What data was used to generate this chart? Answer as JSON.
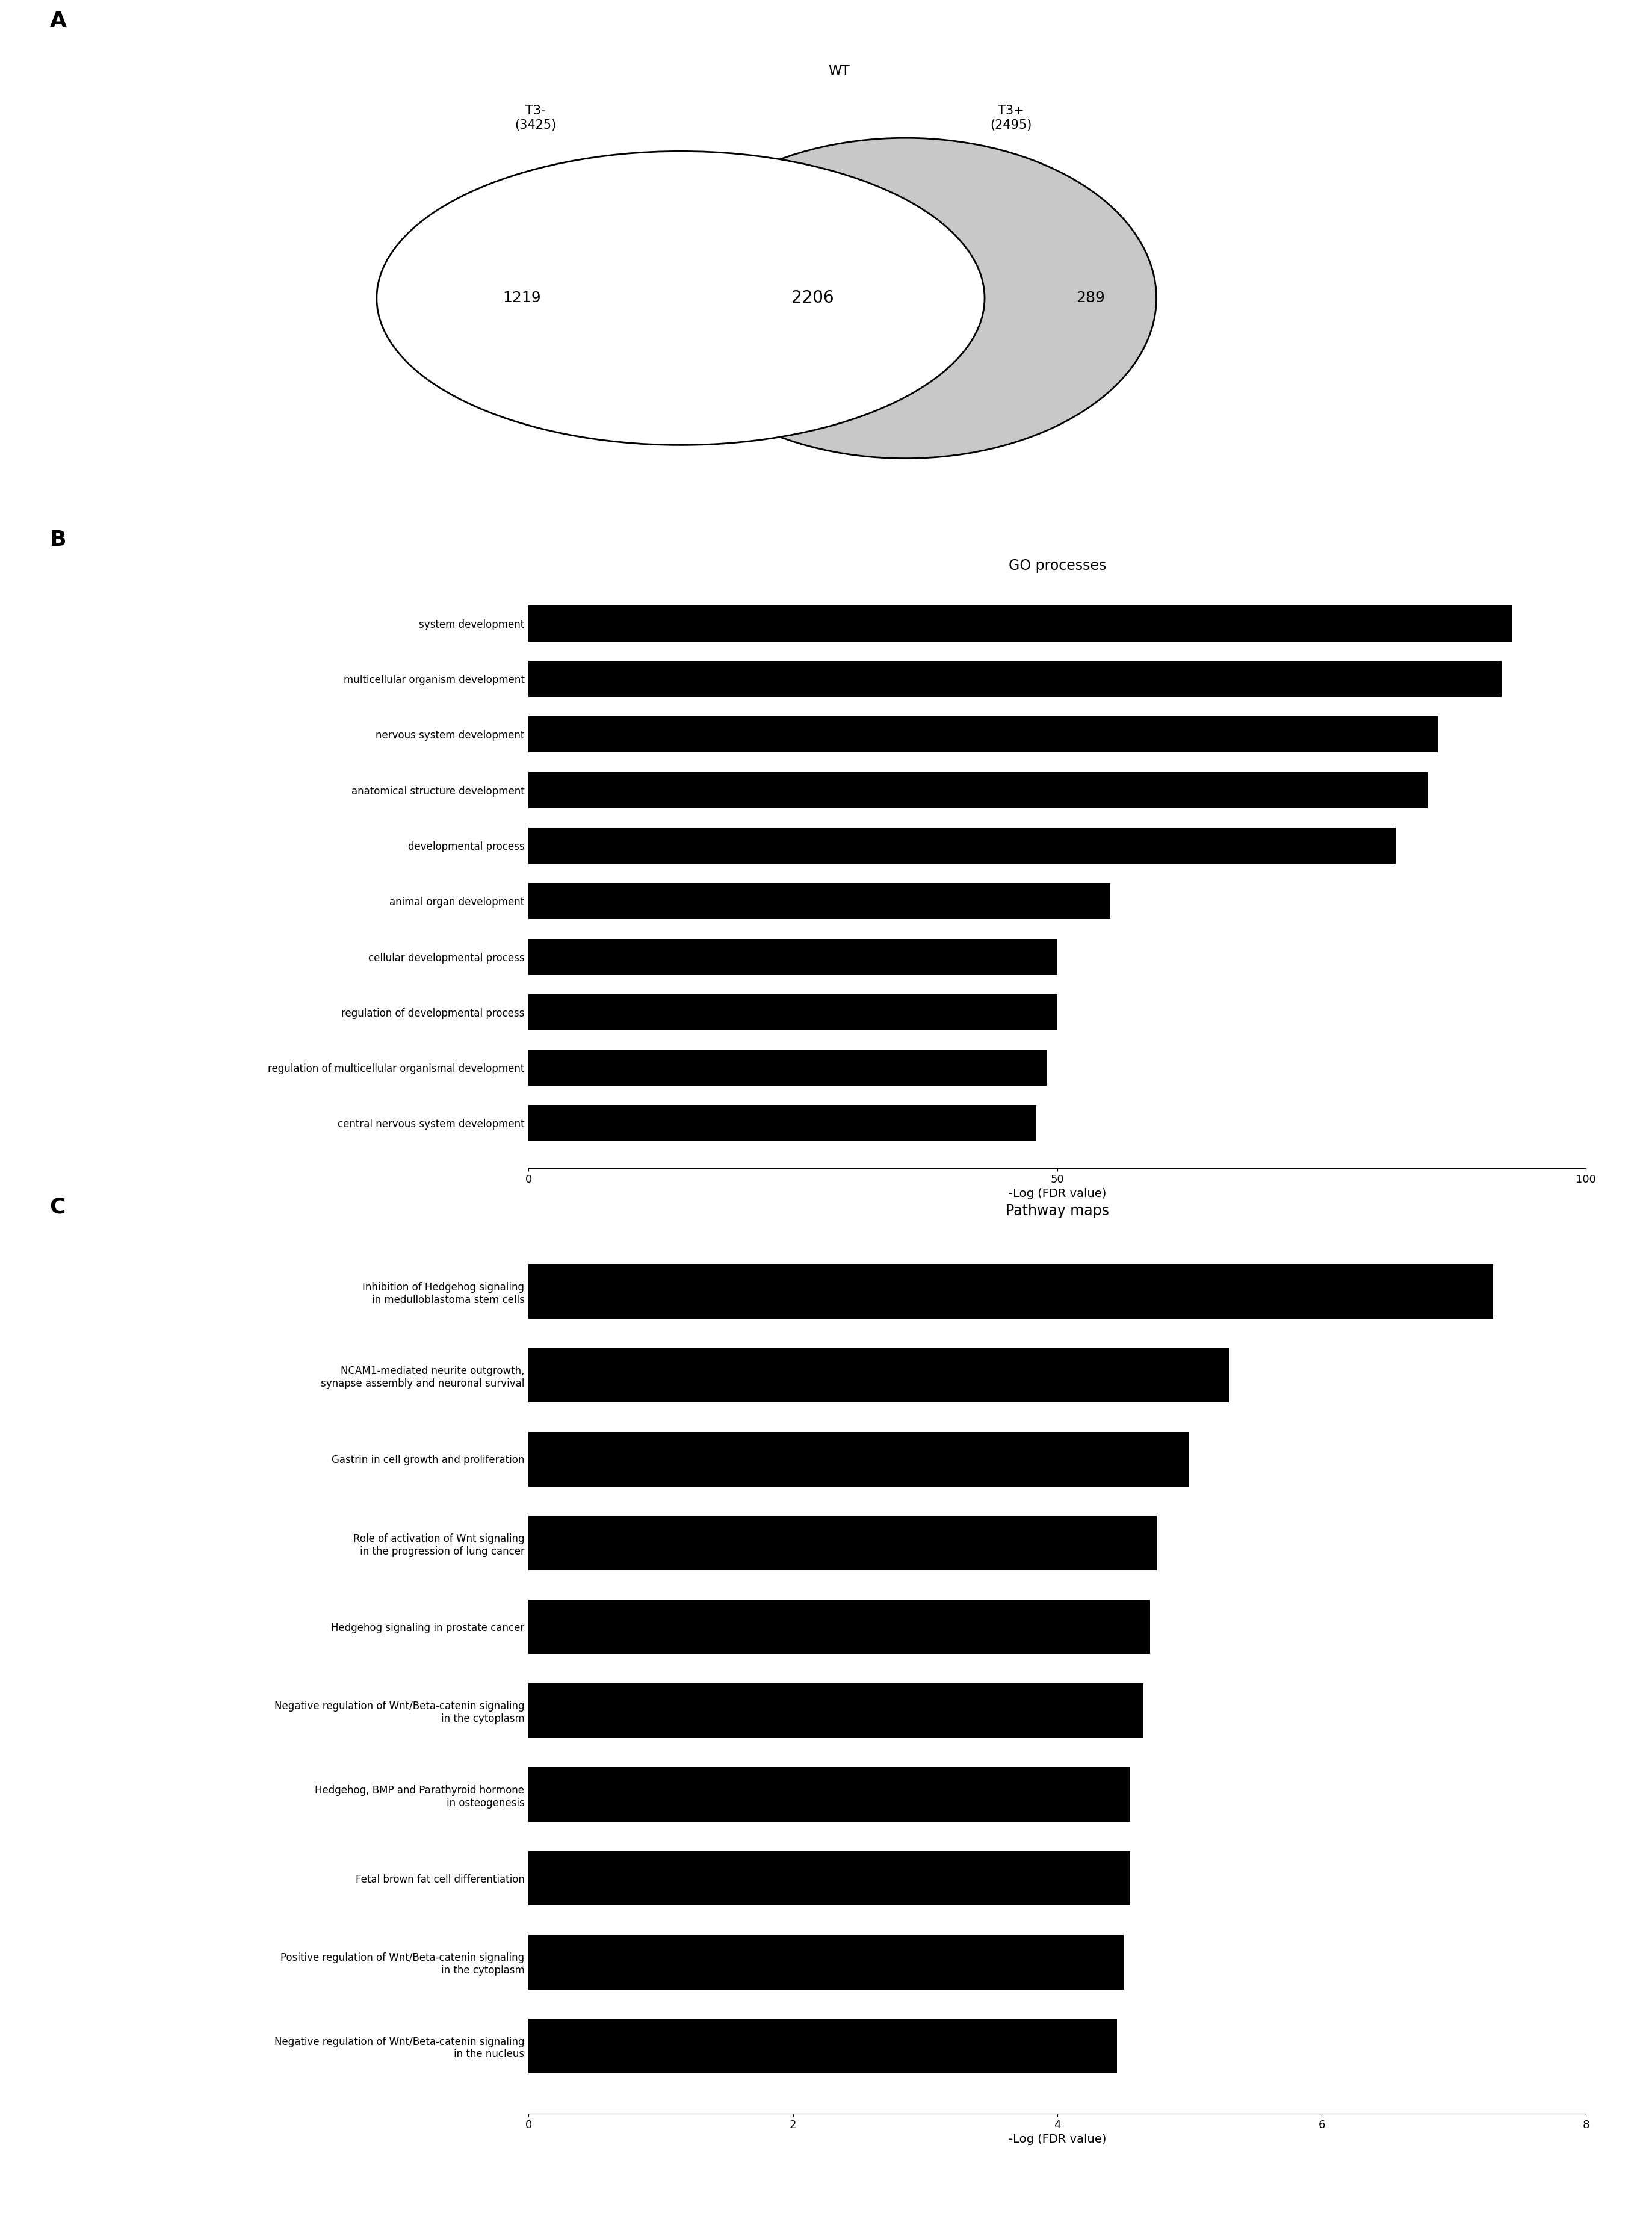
{
  "venn": {
    "label_wt": "WT",
    "label_t3minus": "T3-\n(3425)",
    "label_t3plus": "T3+\n(2495)",
    "val_left": "1219",
    "val_overlap": "2206",
    "val_right": "289"
  },
  "go_title": "GO processes",
  "go_categories": [
    "system development",
    "multicellular organism development",
    "nervous system development",
    "anatomical structure development",
    "developmental process",
    "animal organ development",
    "cellular developmental process",
    "regulation of developmental process",
    "regulation of multicellular organismal development",
    "central nervous system development"
  ],
  "go_values": [
    93,
    92,
    86,
    85,
    82,
    55,
    50,
    50,
    49,
    48
  ],
  "go_xlim": [
    0,
    100
  ],
  "go_xticks": [
    0,
    50,
    100
  ],
  "go_xlabel": "-Log (FDR value)",
  "pathway_title": "Pathway maps",
  "pathway_categories": [
    "Inhibition of Hedgehog signaling\nin medulloblastoma stem cells",
    "NCAM1-mediated neurite outgrowth,\nsynapse assembly and neuronal survival",
    "Gastrin in cell growth and proliferation",
    "Role of activation of Wnt signaling\nin the progression of lung cancer",
    "Hedgehog signaling in prostate cancer",
    "Negative regulation of Wnt/Beta-catenin signaling\nin the cytoplasm",
    "Hedgehog, BMP and Parathyroid hormone\nin osteogenesis",
    "Fetal brown fat cell differentiation",
    "Positive regulation of Wnt/Beta-catenin signaling\nin the cytoplasm",
    "Negative regulation of Wnt/Beta-catenin signaling\nin the nucleus"
  ],
  "pathway_values": [
    7.3,
    5.3,
    5.0,
    4.75,
    4.7,
    4.65,
    4.55,
    4.55,
    4.5,
    4.45
  ],
  "pathway_xlim": [
    0,
    8
  ],
  "pathway_xticks": [
    0,
    2,
    4,
    6,
    8
  ],
  "pathway_xlabel": "-Log (FDR value)",
  "bar_color": "#000000",
  "bg_color": "#ffffff",
  "panel_label_fontsize": 26,
  "title_fontsize": 17,
  "tick_fontsize": 13,
  "category_fontsize": 12,
  "xlabel_fontsize": 14,
  "venn_fontsize_label": 15,
  "venn_fontsize_num": 18,
  "venn_fontsize_wt": 16
}
